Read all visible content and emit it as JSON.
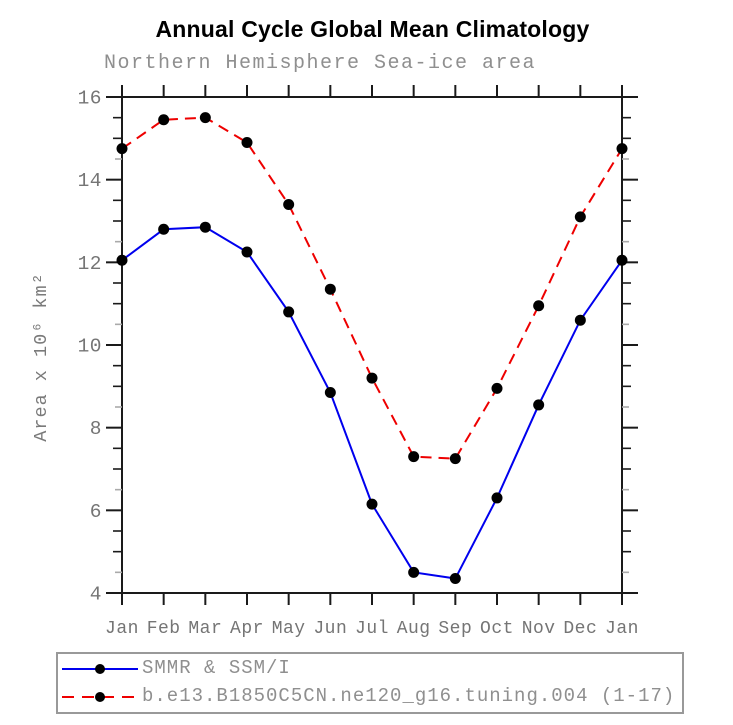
{
  "header": {
    "title": "Annual Cycle Global Mean Climatology",
    "subtitle": "Northern Hemisphere Sea-ice area"
  },
  "chart_data": {
    "type": "line",
    "title": "Annual Cycle Global Mean Climatology",
    "subtitle": "Northern Hemisphere Sea-ice area",
    "categories": [
      "Jan",
      "Feb",
      "Mar",
      "Apr",
      "May",
      "Jun",
      "Jul",
      "Aug",
      "Sep",
      "Oct",
      "Nov",
      "Dec",
      "Jan"
    ],
    "ylabel": "Area x 10⁶ km²",
    "ylim": [
      4,
      16
    ],
    "yticks": [
      4,
      6,
      8,
      10,
      12,
      14,
      16
    ],
    "minor_tick_step": 0.5,
    "grid": false,
    "legend_position": "bottom",
    "marker": {
      "shape": "circle",
      "color": "#000000",
      "radius": 5.5
    },
    "series": [
      {
        "name": "SMMR & SSM/I",
        "color": "#0000ee",
        "style": "solid",
        "values": [
          12.05,
          12.8,
          12.85,
          12.25,
          10.8,
          8.85,
          6.15,
          4.5,
          4.35,
          6.3,
          8.55,
          10.6,
          12.05
        ]
      },
      {
        "name": "b.e13.B1850C5CN.ne120_g16.tuning.004 (1-17)",
        "color": "#ee0000",
        "style": "dashed",
        "values": [
          14.75,
          15.45,
          15.5,
          14.9,
          13.4,
          11.35,
          9.2,
          7.3,
          7.25,
          8.95,
          10.95,
          13.1,
          14.75
        ]
      }
    ]
  },
  "colors": {
    "axis": "#1a1a1a",
    "tick_label": "#757575",
    "axis_label": "#7a7a7a",
    "subtitle_gray": "#8f8f8f",
    "minor_tick_gray": "#aaaaaa",
    "legend_border": "#999999",
    "legend_text": "#8f8f8f"
  }
}
